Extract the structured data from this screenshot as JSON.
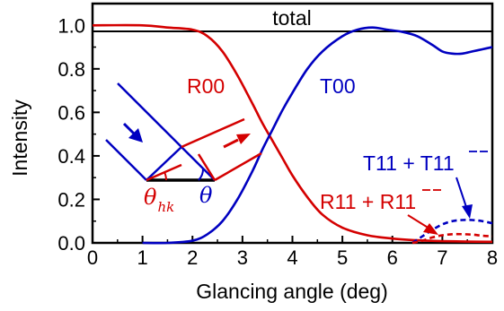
{
  "chart_data": {
    "type": "line",
    "panel_title": "total",
    "xlabel": "Glancing angle (deg)",
    "ylabel": "Intensity",
    "xlim": [
      0,
      8
    ],
    "ylim": [
      0,
      1.1
    ],
    "x_ticks": [
      "0",
      "1",
      "2",
      "3",
      "4",
      "5",
      "6",
      "7",
      "8"
    ],
    "y_ticks": [
      "0.0",
      "0.2",
      "0.4",
      "0.6",
      "0.8",
      "1.0"
    ],
    "x_tick_values": [
      0,
      1,
      2,
      3,
      4,
      5,
      6,
      7,
      8
    ],
    "y_tick_values": [
      0,
      0.2,
      0.4,
      0.6,
      0.8,
      1.0
    ],
    "grid": false,
    "colors": {
      "red": "#d40000",
      "blue": "#0000c0"
    },
    "series": [
      {
        "name": "R00",
        "style": "solid",
        "color": "#d40000",
        "x": [
          0,
          1.0,
          1.5,
          2.0,
          2.3,
          2.6,
          2.9,
          3.2,
          3.4,
          3.6,
          3.8,
          4.0,
          4.3,
          4.6,
          5.0,
          5.5,
          6.0,
          6.5,
          7.0,
          7.5,
          8.0
        ],
        "y": [
          1.0,
          1.0,
          0.99,
          0.98,
          0.95,
          0.88,
          0.77,
          0.64,
          0.55,
          0.47,
          0.39,
          0.31,
          0.21,
          0.13,
          0.07,
          0.035,
          0.02,
          0.012,
          0.008,
          0.006,
          0.005
        ]
      },
      {
        "name": "T00",
        "style": "solid",
        "color": "#0000c0",
        "x": [
          1.0,
          1.5,
          2.0,
          2.3,
          2.6,
          2.9,
          3.2,
          3.4,
          3.6,
          3.8,
          4.0,
          4.3,
          4.6,
          5.0,
          5.3,
          5.6,
          5.9,
          6.2,
          6.5,
          6.8,
          7.0,
          7.2,
          7.4,
          7.6,
          7.8,
          8.0
        ],
        "y": [
          0.0,
          0.0,
          0.01,
          0.04,
          0.1,
          0.2,
          0.33,
          0.43,
          0.52,
          0.61,
          0.69,
          0.8,
          0.88,
          0.95,
          0.98,
          0.99,
          0.98,
          0.97,
          0.95,
          0.91,
          0.88,
          0.87,
          0.87,
          0.88,
          0.89,
          0.9
        ]
      },
      {
        "name": "T11 + T11",
        "style": "dashed",
        "color": "#0000c0",
        "x": [
          6.4,
          6.6,
          6.8,
          7.0,
          7.2,
          7.4,
          7.6,
          7.8,
          8.0
        ],
        "y": [
          0.0,
          0.03,
          0.06,
          0.085,
          0.1,
          0.105,
          0.105,
          0.1,
          0.09
        ]
      },
      {
        "name": "R11 + R11",
        "style": "dashed",
        "color": "#d40000",
        "x": [
          6.4,
          6.6,
          6.8,
          7.0,
          7.2,
          7.4,
          7.6,
          7.8,
          8.0
        ],
        "y": [
          0.0,
          0.01,
          0.025,
          0.035,
          0.04,
          0.04,
          0.038,
          0.033,
          0.03
        ]
      }
    ],
    "labels": {
      "r00": "R00",
      "t00": "T00",
      "t11_prefix": "T11 + T",
      "t11_bar": "11",
      "r11_prefix": "R11 + R",
      "r11_bar": "11",
      "theta_hk": "θ",
      "theta_hk_sub": "hk",
      "theta": "θ"
    }
  }
}
